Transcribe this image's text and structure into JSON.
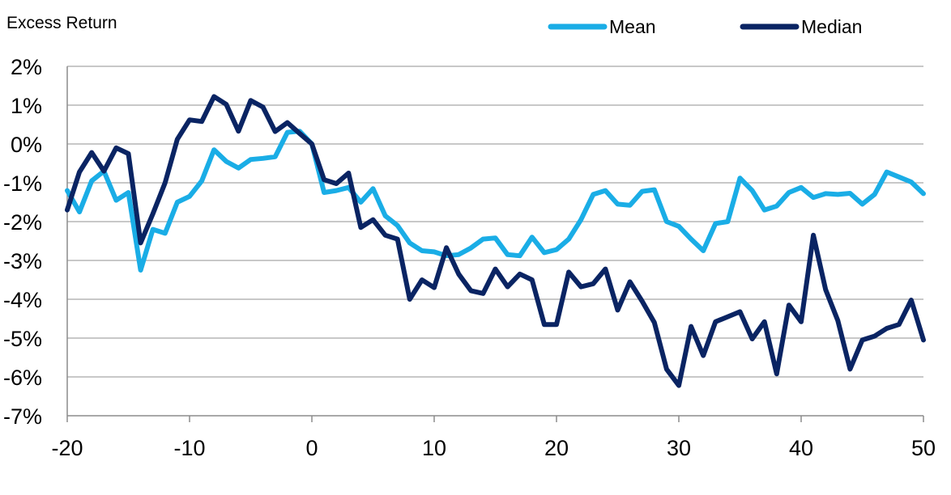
{
  "chart_data": {
    "type": "line",
    "title": "",
    "ylabel": "Excess Return",
    "xlabel": "",
    "xlim": [
      -20,
      50
    ],
    "ylim": [
      -7,
      2
    ],
    "grid": true,
    "legend_position": "top-right",
    "x_ticks": [
      "-20",
      "-10",
      "0",
      "10",
      "20",
      "30",
      "40",
      "50"
    ],
    "x_tick_values": [
      -20,
      -10,
      0,
      10,
      20,
      30,
      40,
      50
    ],
    "y_ticks": [
      "2%",
      "1%",
      "0%",
      "-1%",
      "-2%",
      "-3%",
      "-4%",
      "-5%",
      "-6%",
      "-7%"
    ],
    "y_tick_values": [
      2,
      1,
      0,
      -1,
      -2,
      -3,
      -4,
      -5,
      -6,
      -7
    ],
    "x": [
      -20,
      -19,
      -18,
      -17,
      -16,
      -15,
      -14,
      -13,
      -12,
      -11,
      -10,
      -9,
      -8,
      -7,
      -6,
      -5,
      -4,
      -3,
      -2,
      -1,
      0,
      1,
      2,
      3,
      4,
      5,
      6,
      7,
      8,
      9,
      10,
      11,
      12,
      13,
      14,
      15,
      16,
      17,
      18,
      19,
      20,
      21,
      22,
      23,
      24,
      25,
      26,
      27,
      28,
      29,
      30,
      31,
      32,
      33,
      34,
      35,
      36,
      37,
      38,
      39,
      40,
      41,
      42,
      43,
      44,
      45,
      46,
      47,
      48,
      49,
      50
    ],
    "series": [
      {
        "name": "Mean",
        "color": "#1AADE6",
        "values": [
          -1.2,
          -1.75,
          -0.95,
          -0.7,
          -1.45,
          -1.25,
          -3.25,
          -2.2,
          -2.3,
          -1.5,
          -1.35,
          -0.95,
          -0.15,
          -0.45,
          -0.62,
          -0.4,
          -0.37,
          -0.33,
          0.3,
          0.33,
          0.0,
          -1.25,
          -1.2,
          -1.12,
          -1.5,
          -1.15,
          -1.85,
          -2.1,
          -2.55,
          -2.75,
          -2.78,
          -2.88,
          -2.85,
          -2.68,
          -2.45,
          -2.42,
          -2.85,
          -2.88,
          -2.4,
          -2.8,
          -2.72,
          -2.45,
          -1.95,
          -1.3,
          -1.2,
          -1.55,
          -1.58,
          -1.22,
          -1.18,
          -2.0,
          -2.12,
          -2.45,
          -2.75,
          -2.05,
          -2.0,
          -0.88,
          -1.2,
          -1.7,
          -1.6,
          -1.25,
          -1.12,
          -1.38,
          -1.28,
          -1.3,
          -1.27,
          -1.55,
          -1.3,
          -0.72,
          -0.85,
          -0.98,
          -1.28
        ]
      },
      {
        "name": "Median",
        "color": "#0A2463",
        "values": [
          -1.7,
          -0.72,
          -0.22,
          -0.7,
          -0.1,
          -0.25,
          -2.55,
          -1.8,
          -1.0,
          0.12,
          0.62,
          0.58,
          1.22,
          1.02,
          0.33,
          1.12,
          0.95,
          0.32,
          0.55,
          0.27,
          0.0,
          -0.92,
          -1.02,
          -0.75,
          -2.15,
          -1.95,
          -2.35,
          -2.45,
          -4.0,
          -3.5,
          -3.7,
          -2.67,
          -3.35,
          -3.78,
          -3.85,
          -3.22,
          -3.68,
          -3.35,
          -3.5,
          -4.65,
          -4.65,
          -3.3,
          -3.68,
          -3.6,
          -3.22,
          -4.28,
          -3.55,
          -4.05,
          -4.6,
          -5.8,
          -6.22,
          -4.7,
          -5.45,
          -4.58,
          -4.45,
          -4.32,
          -5.02,
          -4.58,
          -5.92,
          -4.15,
          -4.58,
          -2.35,
          -3.75,
          -4.55,
          -5.8,
          -5.05,
          -4.95,
          -4.75,
          -4.65,
          -4.02,
          -5.05
        ]
      }
    ]
  }
}
